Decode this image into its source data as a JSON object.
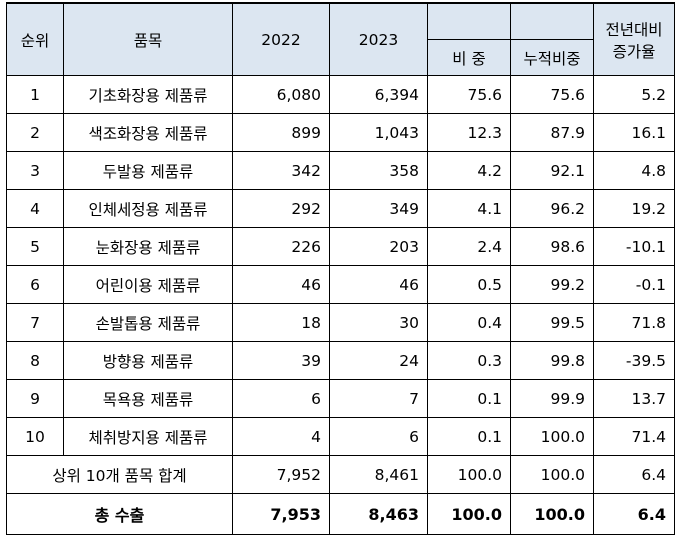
{
  "headers": {
    "rank": "순위",
    "item": "품목",
    "y2022": "2022",
    "y2023": "2023",
    "share": "비 중",
    "cumulative": "누적비중",
    "growth_line1": "전년대비",
    "growth_line2": "증가율"
  },
  "rows": [
    {
      "rank": "1",
      "item": "기초화장용 제품류",
      "y2022": "6,080",
      "y2023": "6,394",
      "share": "75.6",
      "cumulative": "75.6",
      "growth": "5.2"
    },
    {
      "rank": "2",
      "item": "색조화장용 제품류",
      "y2022": "899",
      "y2023": "1,043",
      "share": "12.3",
      "cumulative": "87.9",
      "growth": "16.1"
    },
    {
      "rank": "3",
      "item": "두발용 제품류",
      "y2022": "342",
      "y2023": "358",
      "share": "4.2",
      "cumulative": "92.1",
      "growth": "4.8"
    },
    {
      "rank": "4",
      "item": "인체세정용 제품류",
      "y2022": "292",
      "y2023": "349",
      "share": "4.1",
      "cumulative": "96.2",
      "growth": "19.2"
    },
    {
      "rank": "5",
      "item": "눈화장용 제품류",
      "y2022": "226",
      "y2023": "203",
      "share": "2.4",
      "cumulative": "98.6",
      "growth": "-10.1"
    },
    {
      "rank": "6",
      "item": "어린이용 제품류",
      "y2022": "46",
      "y2023": "46",
      "share": "0.5",
      "cumulative": "99.2",
      "growth": "-0.1"
    },
    {
      "rank": "7",
      "item": "손발톱용 제품류",
      "y2022": "18",
      "y2023": "30",
      "share": "0.4",
      "cumulative": "99.5",
      "growth": "71.8"
    },
    {
      "rank": "8",
      "item": "방향용 제품류",
      "y2022": "39",
      "y2023": "24",
      "share": "0.3",
      "cumulative": "99.8",
      "growth": "-39.5"
    },
    {
      "rank": "9",
      "item": "목욕용 제품류",
      "y2022": "6",
      "y2023": "7",
      "share": "0.1",
      "cumulative": "99.9",
      "growth": "13.7"
    },
    {
      "rank": "10",
      "item": "체취방지용 제품류",
      "y2022": "4",
      "y2023": "6",
      "share": "0.1",
      "cumulative": "100.0",
      "growth": "71.4"
    }
  ],
  "subtotal": {
    "label": "상위 10개 품목 합계",
    "y2022": "7,952",
    "y2023": "8,461",
    "share": "100.0",
    "cumulative": "100.0",
    "growth": "6.4"
  },
  "total": {
    "label": "총 수출",
    "y2022": "7,953",
    "y2023": "8,463",
    "share": "100.0",
    "cumulative": "100.0",
    "growth": "6.4"
  }
}
